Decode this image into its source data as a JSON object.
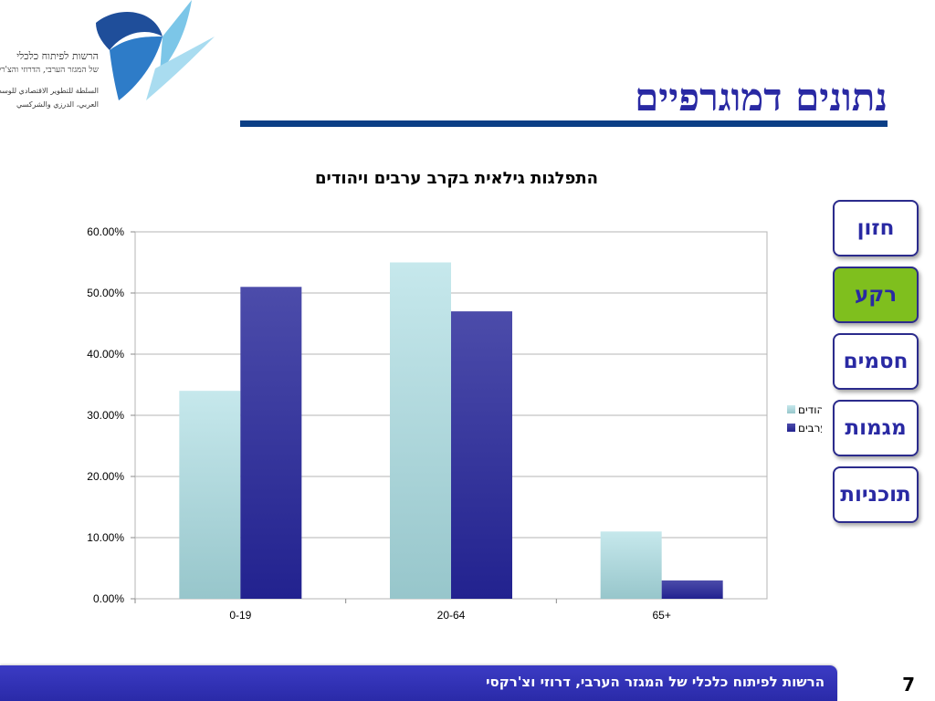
{
  "slide": {
    "title": "נתונים דמוגרפיים",
    "page_number": "7",
    "footer": "הרשות לפיתוח כלכלי של המגזר הערבי, דרוזי וצ'רקסי"
  },
  "logo": {
    "lines": [
      "הרשות לפיתוח כלכלי",
      "של המגזר הערבי, הדרוזי והצ'רקסי",
      "السلطة للتطوير الاقتصادي للوسط",
      "العربي، الدرزي والشركسي"
    ],
    "colors": {
      "dark_blue": "#1f4e9a",
      "light_blue": "#7cc6e8"
    }
  },
  "nav": {
    "items": [
      {
        "label": "חזון",
        "active": false
      },
      {
        "label": "רקע",
        "active": true
      },
      {
        "label": "חסמים",
        "active": false
      },
      {
        "label": "מגמות",
        "active": false
      },
      {
        "label": "תוכניות",
        "active": false
      }
    ],
    "colors": {
      "border": "#2b2b8c",
      "text": "#2929a3",
      "active_fill": "#7fbf1e"
    }
  },
  "chart_data": {
    "type": "bar",
    "title": "התפלגות גילאית בקרב ערבים ויהודים",
    "categories": [
      "0-19",
      "20-64",
      "65+"
    ],
    "series": [
      {
        "name": "יהודים",
        "values": [
          0.34,
          0.55,
          0.11
        ],
        "color": "#a8d6da"
      },
      {
        "name": "ערבים",
        "values": [
          0.51,
          0.47,
          0.03
        ],
        "color": "#2f2f9e"
      }
    ],
    "y_ticks": [
      "0.00%",
      "10.00%",
      "20.00%",
      "30.00%",
      "40.00%",
      "50.00%",
      "60.00%"
    ],
    "ylim": [
      0,
      0.6
    ],
    "grid": true,
    "legend_position": "right"
  },
  "colors": {
    "title": "#2929a3",
    "rule": "#0b3f86",
    "footer_bg": "#3030b8"
  }
}
